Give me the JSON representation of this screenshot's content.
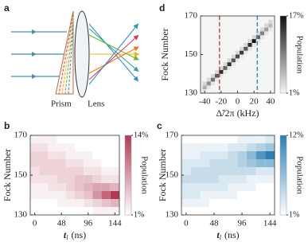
{
  "diagram": {
    "label": "a",
    "labels": [
      "Prism",
      "Lens"
    ]
  },
  "chart_data": [
    {
      "type": "heatmap",
      "label": "d",
      "ylabel": "Fock Number",
      "xlabel": "Δ̃/2π (kHz)",
      "xlim": [
        -45,
        45
      ],
      "xticks": [
        -40,
        -20,
        0,
        20,
        40
      ],
      "ylim": [
        130,
        170
      ],
      "yticks": [
        130,
        150,
        170
      ],
      "x": [
        -40,
        -40,
        -40,
        -35,
        -35,
        -35,
        -30,
        -30,
        -30,
        -25,
        -25,
        -25,
        -20,
        -20,
        -20,
        -15,
        -15,
        -15,
        -10,
        -10,
        -10,
        -5,
        -5,
        -5,
        0,
        0,
        0,
        5,
        5,
        5,
        10,
        10,
        10,
        15,
        15,
        15,
        20,
        20,
        20,
        25,
        25,
        25,
        30,
        30,
        30,
        35,
        35,
        35,
        40,
        40,
        40
      ],
      "y": [
        131,
        133,
        135,
        133,
        135,
        137,
        135,
        137,
        139,
        137,
        139,
        141,
        139,
        141,
        143,
        141,
        143,
        145,
        143,
        145,
        147,
        145,
        147,
        149,
        147,
        149,
        151,
        149,
        151,
        153,
        151,
        153,
        155,
        153,
        155,
        157,
        155,
        157,
        159,
        157,
        159,
        161,
        159,
        161,
        163,
        161,
        163,
        165,
        163,
        165,
        167
      ],
      "values": [
        2,
        6,
        3,
        2,
        8,
        3,
        2,
        10,
        3,
        2,
        12,
        3,
        2,
        15,
        3,
        2,
        11,
        3,
        2,
        15,
        3,
        2,
        12,
        3,
        2,
        13,
        3,
        2,
        14,
        3,
        2,
        12,
        3,
        2,
        15,
        3,
        2,
        17,
        3,
        2,
        12,
        3,
        2,
        9,
        3,
        2,
        7,
        3,
        2,
        5,
        3
      ],
      "vlines": [
        {
          "x": -22,
          "color": "#c8505e"
        },
        {
          "x": 24,
          "color": "#4a8fc4"
        }
      ],
      "clim": [
        1,
        17
      ],
      "colormap": [
        "#f3f6f3",
        "#111111"
      ],
      "cticks": [
        {
          "value": 17,
          "label": "17%"
        },
        {
          "value": 1,
          "label": "1%"
        }
      ],
      "colorbar_label": "Population"
    },
    {
      "type": "heatmap",
      "label": "b",
      "ylabel": "Fock Number",
      "xlabel": {
        "symbol": "t",
        "subscript": "l",
        "unit": "(ns)"
      },
      "xlim": [
        -8,
        152
      ],
      "xticks": [
        0,
        48,
        96,
        144
      ],
      "ylim": [
        130,
        170
      ],
      "yticks": [
        130,
        150,
        170
      ],
      "x": [
        0,
        16,
        32,
        48,
        64,
        80,
        96,
        112,
        128,
        144
      ],
      "y": [
        168,
        164,
        160,
        156,
        152,
        148,
        144,
        140,
        136,
        132
      ],
      "values": [
        [
          2,
          2,
          2,
          1,
          1,
          1,
          1,
          1,
          1,
          1
        ],
        [
          3,
          3,
          2,
          2,
          2,
          1,
          1,
          1,
          1,
          1
        ],
        [
          4,
          4,
          3,
          3,
          2,
          2,
          2,
          1,
          1,
          1
        ],
        [
          4,
          4,
          4,
          4,
          3,
          3,
          2,
          2,
          1,
          1
        ],
        [
          3,
          4,
          4,
          4,
          4,
          4,
          3,
          3,
          2,
          2
        ],
        [
          3,
          3,
          3,
          4,
          4,
          5,
          5,
          4,
          3,
          3
        ],
        [
          2,
          2,
          3,
          3,
          4,
          5,
          6,
          7,
          7,
          6
        ],
        [
          2,
          2,
          2,
          2,
          3,
          4,
          5,
          8,
          11,
          14
        ],
        [
          1,
          1,
          1,
          2,
          2,
          2,
          3,
          4,
          5,
          6
        ],
        [
          1,
          1,
          1,
          1,
          1,
          1,
          1,
          2,
          2,
          2
        ]
      ],
      "clim": [
        1,
        14
      ],
      "colormap": [
        "#ffffff",
        "#b03a55"
      ],
      "cticks": [
        {
          "value": 14,
          "label": "14%"
        },
        {
          "value": 1,
          "label": "1%"
        }
      ],
      "colorbar_label": "Population"
    },
    {
      "type": "heatmap",
      "label": "c",
      "ylabel": "Fock Number",
      "xlabel": {
        "symbol": "t",
        "subscript": "l",
        "unit": "(ns)"
      },
      "xlim": [
        -8,
        152
      ],
      "xticks": [
        0,
        48,
        96,
        144
      ],
      "ylim": [
        130,
        170
      ],
      "yticks": [
        130,
        150,
        170
      ],
      "x": [
        0,
        16,
        32,
        48,
        64,
        80,
        96,
        112,
        128,
        144
      ],
      "y": [
        168,
        164,
        160,
        156,
        152,
        148,
        144,
        140,
        136,
        132
      ],
      "values": [
        [
          1,
          1,
          1,
          1,
          1,
          1,
          2,
          2,
          2,
          3
        ],
        [
          2,
          2,
          2,
          2,
          2,
          3,
          3,
          4,
          5,
          6
        ],
        [
          2,
          2,
          3,
          3,
          3,
          4,
          5,
          7,
          10,
          12
        ],
        [
          3,
          3,
          3,
          4,
          4,
          4,
          5,
          6,
          7,
          7
        ],
        [
          3,
          4,
          4,
          4,
          4,
          4,
          4,
          4,
          3,
          3
        ],
        [
          4,
          4,
          4,
          4,
          3,
          3,
          3,
          2,
          2,
          2
        ],
        [
          3,
          3,
          3,
          3,
          3,
          2,
          2,
          2,
          1,
          1
        ],
        [
          3,
          3,
          2,
          2,
          2,
          2,
          1,
          1,
          1,
          1
        ],
        [
          2,
          2,
          2,
          1,
          1,
          1,
          1,
          1,
          1,
          1
        ],
        [
          1,
          1,
          1,
          1,
          1,
          1,
          1,
          1,
          1,
          1
        ]
      ],
      "clim": [
        1,
        12
      ],
      "colormap": [
        "#ffffff",
        "#2d7eb3"
      ],
      "cticks": [
        {
          "value": 12,
          "label": "12%"
        },
        {
          "value": 1,
          "label": "1%"
        }
      ],
      "colorbar_label": "Population"
    }
  ]
}
